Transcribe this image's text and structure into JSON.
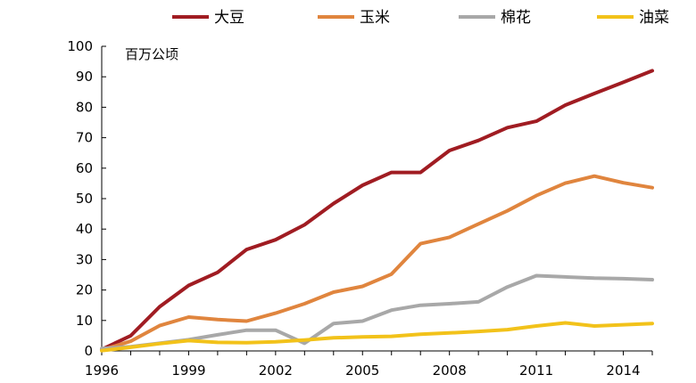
{
  "chart_data": {
    "type": "line",
    "title": "",
    "unit_label": "百万公顷",
    "xlabel": "",
    "ylabel": "",
    "xlim": [
      1996,
      2015
    ],
    "ylim": [
      0,
      100
    ],
    "x_ticks": [
      "1996",
      "1999",
      "2002",
      "2005",
      "2008",
      "2011",
      "2014"
    ],
    "y_ticks": [
      "0",
      "10",
      "20",
      "30",
      "40",
      "50",
      "60",
      "70",
      "80",
      "90",
      "100"
    ],
    "legend_position": "top",
    "grid": false,
    "x": [
      1996,
      1997,
      1998,
      1999,
      2000,
      2001,
      2002,
      2003,
      2004,
      2005,
      2006,
      2007,
      2008,
      2009,
      2010,
      2011,
      2012,
      2013,
      2014,
      2015
    ],
    "series": [
      {
        "name": "大豆",
        "color": "#a01c22",
        "values": [
          0.5,
          5,
          14.5,
          21.5,
          25.8,
          33.3,
          36.5,
          41.4,
          48.4,
          54.4,
          58.6,
          58.6,
          65.8,
          69.1,
          73.3,
          75.4,
          80.7,
          84.5,
          88.2,
          92
        ]
      },
      {
        "name": "玉米",
        "color": "#e0853e",
        "values": [
          0.3,
          3.2,
          8.3,
          11.1,
          10.3,
          9.8,
          12.4,
          15.5,
          19.3,
          21.2,
          25.2,
          35.2,
          37.3,
          41.7,
          46,
          51,
          55.1,
          57.4,
          55.2,
          53.6
        ]
      },
      {
        "name": "棉花",
        "color": "#a8a8a8",
        "values": [
          0.8,
          1.4,
          2.5,
          3.7,
          5.3,
          6.8,
          6.8,
          2.5,
          9,
          9.8,
          13.4,
          15,
          15.5,
          16.1,
          21,
          24.7,
          24.3,
          23.9,
          23.7,
          23.4
        ]
      },
      {
        "name": "油菜",
        "color": "#f2c21a",
        "values": [
          0.1,
          1.2,
          2.4,
          3.4,
          2.8,
          2.7,
          3,
          3.6,
          4.3,
          4.6,
          4.8,
          5.5,
          5.9,
          6.4,
          7,
          8.2,
          9.2,
          8.2,
          8.6,
          9
        ]
      }
    ]
  }
}
